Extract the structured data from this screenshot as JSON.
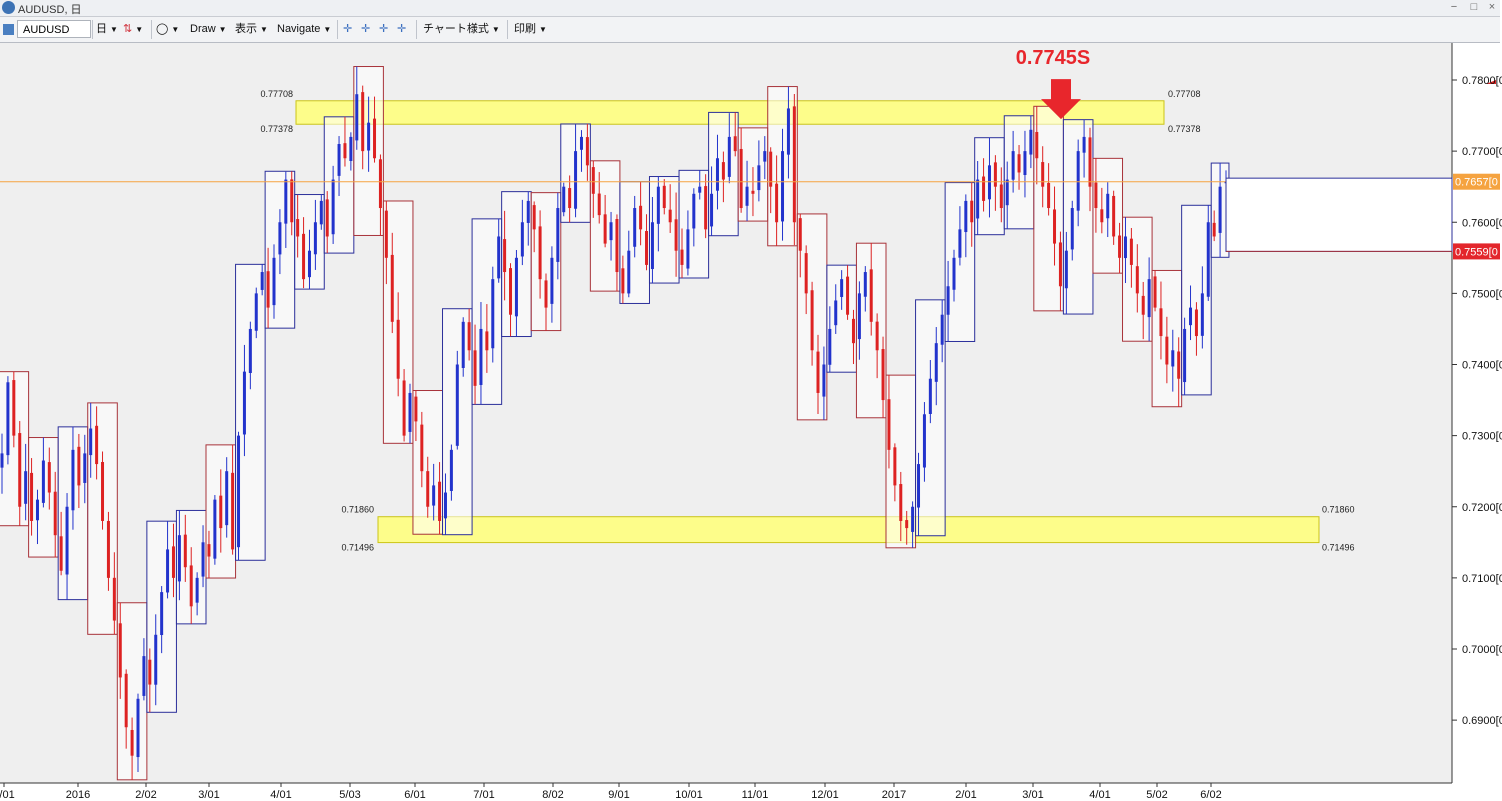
{
  "window": {
    "title": "AUDUSD, 日",
    "minimize_glyph": "−",
    "maximize_glyph": "□",
    "close_glyph": "×",
    "app_icon": "chart-app-icon"
  },
  "toolbar": {
    "symbol": "AUDUSD",
    "timeframe": "日",
    "draw_label": "Draw",
    "view_label": "表示",
    "navigate_label": "Navigate",
    "chart_style_label": "チャート様式",
    "print_label": "印刷",
    "dropdown_glyph": "▼",
    "circle_glyph": "◯",
    "candle_glyph": "⇅",
    "cursor_glyphs": [
      "✛",
      "✛",
      "✛",
      "✛"
    ]
  },
  "chart_data": {
    "type": "candlestick",
    "instrument": "AUDUSD",
    "timeframe": "daily",
    "y_range": [
      0.682,
      0.787
    ],
    "x_tick_labels": [
      "2/01",
      "2016",
      "2/02",
      "3/01",
      "4/01",
      "5/03",
      "6/01",
      "7/01",
      "8/02",
      "9/01",
      "10/01",
      "11/01",
      "12/01",
      "2017",
      "2/01",
      "3/01",
      "4/01",
      "5/02",
      "6/02"
    ],
    "y_tick_labels": [
      {
        "value": 0.69,
        "label": "0.6900[0"
      },
      {
        "value": 0.7,
        "label": "0.7000[0"
      },
      {
        "value": 0.71,
        "label": "0.7100[0"
      },
      {
        "value": 0.72,
        "label": "0.7200[0"
      },
      {
        "value": 0.73,
        "label": "0.7300[0"
      },
      {
        "value": 0.74,
        "label": "0.7400[0"
      },
      {
        "value": 0.75,
        "label": "0.7500[0"
      },
      {
        "value": 0.76,
        "label": "0.7600[0"
      },
      {
        "value": 0.77,
        "label": "0.7700[0"
      },
      {
        "value": 0.78,
        "label": "0.7800[0"
      }
    ],
    "current_price": {
      "value": 0.7657,
      "label": "0.7657[0",
      "color": "#f5a340"
    },
    "secondary_price": {
      "value": 0.7559,
      "label": "0.7559[0",
      "color": "#e3262c"
    },
    "resistance_zone": {
      "top": 0.77708,
      "bottom": 0.77378,
      "top_label": "0.77708",
      "bottom_label": "0.77378",
      "color": "#ffff80"
    },
    "support_zone": {
      "top": 0.7186,
      "bottom": 0.71496,
      "top_label": "0.71860",
      "bottom_label": "0.71496",
      "color": "#ffff80"
    },
    "annotation": {
      "text": "0.7745S",
      "price": 0.7745,
      "color": "#e8262c"
    },
    "closes": [
      0.7275,
      0.7375,
      0.73,
      0.72,
      0.725,
      0.718,
      0.721,
      0.7265,
      0.722,
      0.716,
      0.711,
      0.72,
      0.728,
      0.723,
      0.7275,
      0.731,
      0.726,
      0.718,
      0.71,
      0.704,
      0.696,
      0.689,
      0.685,
      0.693,
      0.699,
      0.695,
      0.702,
      0.708,
      0.714,
      0.71,
      0.716,
      0.7115,
      0.706,
      0.71,
      0.715,
      0.713,
      0.721,
      0.717,
      0.725,
      0.714,
      0.73,
      0.739,
      0.745,
      0.75,
      0.753,
      0.748,
      0.755,
      0.76,
      0.766,
      0.76,
      0.758,
      0.752,
      0.756,
      0.76,
      0.763,
      0.758,
      0.766,
      0.771,
      0.769,
      0.772,
      0.778,
      0.77,
      0.774,
      0.769,
      0.762,
      0.755,
      0.746,
      0.738,
      0.73,
      0.736,
      0.732,
      0.725,
      0.72,
      0.723,
      0.718,
      0.722,
      0.728,
      0.74,
      0.746,
      0.742,
      0.737,
      0.745,
      0.742,
      0.752,
      0.758,
      0.753,
      0.747,
      0.755,
      0.76,
      0.763,
      0.759,
      0.752,
      0.748,
      0.755,
      0.762,
      0.765,
      0.762,
      0.77,
      0.772,
      0.768,
      0.764,
      0.761,
      0.757,
      0.76,
      0.753,
      0.75,
      0.756,
      0.762,
      0.759,
      0.754,
      0.76,
      0.765,
      0.762,
      0.76,
      0.756,
      0.754,
      0.759,
      0.764,
      0.765,
      0.759,
      0.764,
      0.769,
      0.766,
      0.772,
      0.77,
      0.762,
      0.765,
      0.764,
      0.768,
      0.77,
      0.765,
      0.76,
      0.77,
      0.776,
      0.76,
      0.756,
      0.75,
      0.742,
      0.736,
      0.74,
      0.745,
      0.749,
      0.752,
      0.747,
      0.743,
      0.75,
      0.753,
      0.746,
      0.742,
      0.735,
      0.728,
      0.723,
      0.718,
      0.717,
      0.72,
      0.726,
      0.733,
      0.738,
      0.743,
      0.747,
      0.751,
      0.755,
      0.759,
      0.763,
      0.76,
      0.766,
      0.763,
      0.768,
      0.765,
      0.762,
      0.766,
      0.77,
      0.767,
      0.77,
      0.773,
      0.769,
      0.765,
      0.762,
      0.757,
      0.751,
      0.756,
      0.762,
      0.77,
      0.772,
      0.765,
      0.762,
      0.76,
      0.764,
      0.758,
      0.755,
      0.758,
      0.754,
      0.75,
      0.747,
      0.752,
      0.748,
      0.744,
      0.74,
      0.742,
      0.738,
      0.745,
      0.748,
      0.744,
      0.75,
      0.76,
      0.758,
      0.765,
      0.7657
    ]
  }
}
